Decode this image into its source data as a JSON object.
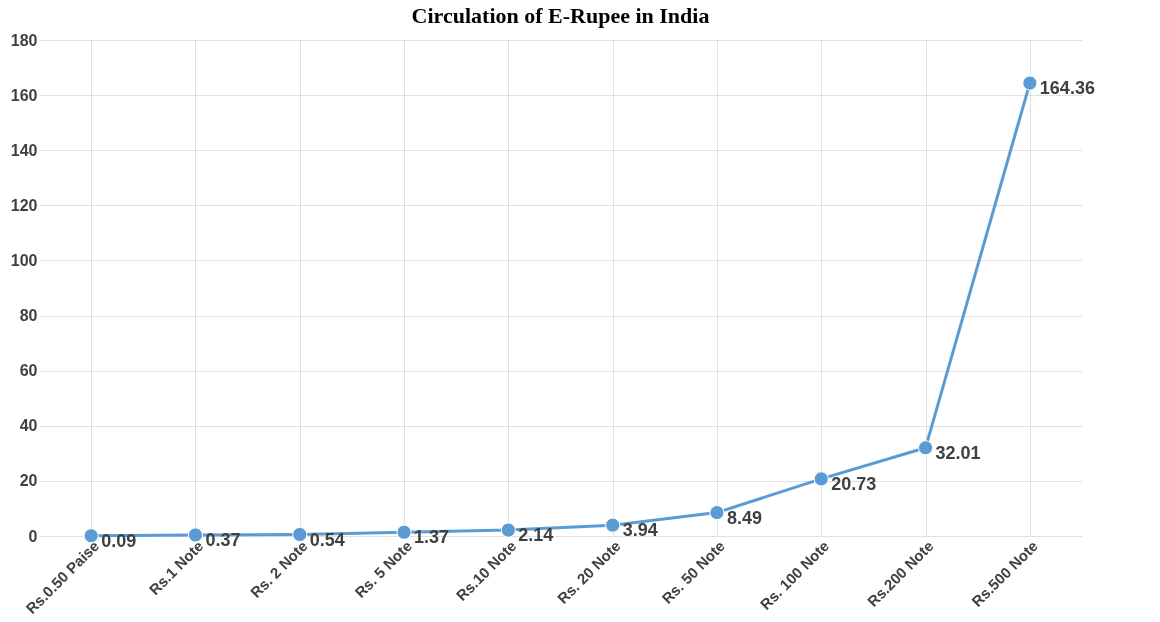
{
  "chart_data": {
    "type": "line",
    "title": "Circulation of E-Rupee in India",
    "categories": [
      "Rs.0.50 Paise",
      "Rs.1 Note",
      "Rs. 2 Note",
      "Rs. 5 Note",
      "Rs.10 Note",
      "Rs. 20 Note",
      "Rs. 50 Note",
      "Rs. 100 Note",
      "Rs.200 Note",
      "Rs.500 Note"
    ],
    "series": [
      {
        "color": "#5b9bd5",
        "values": [
          0.09,
          0.37,
          0.54,
          1.37,
          2.14,
          3.94,
          8.49,
          20.73,
          32.01,
          164.36
        ]
      }
    ],
    "ylim": [
      0,
      180
    ],
    "yticks": [
      0,
      20,
      40,
      60,
      80,
      100,
      120,
      140,
      160,
      180
    ],
    "grid": true,
    "marker": "circle",
    "data_labels": true
  }
}
